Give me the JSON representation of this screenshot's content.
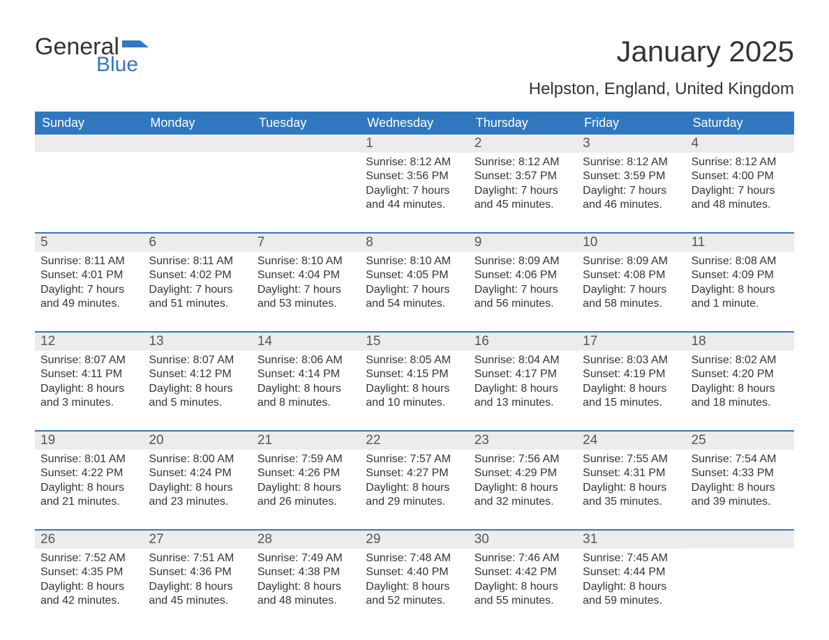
{
  "logo": {
    "word1": "General",
    "word2": "Blue",
    "flag_color": "#2f78bf"
  },
  "title": "January 2025",
  "subtitle": "Helpston, England, United Kingdom",
  "colors": {
    "header_bg": "#2f78bf",
    "header_fg": "#ffffff",
    "daynum_bg": "#ececec",
    "text": "#333333",
    "page_bg": "#ffffff"
  },
  "typography": {
    "title_fontsize": 42,
    "subtitle_fontsize": 24,
    "dayhead_fontsize": 18,
    "daynum_fontsize": 19,
    "body_fontsize": 16
  },
  "day_names": [
    "Sunday",
    "Monday",
    "Tuesday",
    "Wednesday",
    "Thursday",
    "Friday",
    "Saturday"
  ],
  "labels": {
    "sunrise": "Sunrise: ",
    "sunset": "Sunset: ",
    "daylight": "Daylight: "
  },
  "weeks": [
    [
      null,
      null,
      null,
      {
        "n": "1",
        "sunrise": "8:12 AM",
        "sunset": "3:56 PM",
        "daylight": "7 hours and 44 minutes."
      },
      {
        "n": "2",
        "sunrise": "8:12 AM",
        "sunset": "3:57 PM",
        "daylight": "7 hours and 45 minutes."
      },
      {
        "n": "3",
        "sunrise": "8:12 AM",
        "sunset": "3:59 PM",
        "daylight": "7 hours and 46 minutes."
      },
      {
        "n": "4",
        "sunrise": "8:12 AM",
        "sunset": "4:00 PM",
        "daylight": "7 hours and 48 minutes."
      }
    ],
    [
      {
        "n": "5",
        "sunrise": "8:11 AM",
        "sunset": "4:01 PM",
        "daylight": "7 hours and 49 minutes."
      },
      {
        "n": "6",
        "sunrise": "8:11 AM",
        "sunset": "4:02 PM",
        "daylight": "7 hours and 51 minutes."
      },
      {
        "n": "7",
        "sunrise": "8:10 AM",
        "sunset": "4:04 PM",
        "daylight": "7 hours and 53 minutes."
      },
      {
        "n": "8",
        "sunrise": "8:10 AM",
        "sunset": "4:05 PM",
        "daylight": "7 hours and 54 minutes."
      },
      {
        "n": "9",
        "sunrise": "8:09 AM",
        "sunset": "4:06 PM",
        "daylight": "7 hours and 56 minutes."
      },
      {
        "n": "10",
        "sunrise": "8:09 AM",
        "sunset": "4:08 PM",
        "daylight": "7 hours and 58 minutes."
      },
      {
        "n": "11",
        "sunrise": "8:08 AM",
        "sunset": "4:09 PM",
        "daylight": "8 hours and 1 minute."
      }
    ],
    [
      {
        "n": "12",
        "sunrise": "8:07 AM",
        "sunset": "4:11 PM",
        "daylight": "8 hours and 3 minutes."
      },
      {
        "n": "13",
        "sunrise": "8:07 AM",
        "sunset": "4:12 PM",
        "daylight": "8 hours and 5 minutes."
      },
      {
        "n": "14",
        "sunrise": "8:06 AM",
        "sunset": "4:14 PM",
        "daylight": "8 hours and 8 minutes."
      },
      {
        "n": "15",
        "sunrise": "8:05 AM",
        "sunset": "4:15 PM",
        "daylight": "8 hours and 10 minutes."
      },
      {
        "n": "16",
        "sunrise": "8:04 AM",
        "sunset": "4:17 PM",
        "daylight": "8 hours and 13 minutes."
      },
      {
        "n": "17",
        "sunrise": "8:03 AM",
        "sunset": "4:19 PM",
        "daylight": "8 hours and 15 minutes."
      },
      {
        "n": "18",
        "sunrise": "8:02 AM",
        "sunset": "4:20 PM",
        "daylight": "8 hours and 18 minutes."
      }
    ],
    [
      {
        "n": "19",
        "sunrise": "8:01 AM",
        "sunset": "4:22 PM",
        "daylight": "8 hours and 21 minutes."
      },
      {
        "n": "20",
        "sunrise": "8:00 AM",
        "sunset": "4:24 PM",
        "daylight": "8 hours and 23 minutes."
      },
      {
        "n": "21",
        "sunrise": "7:59 AM",
        "sunset": "4:26 PM",
        "daylight": "8 hours and 26 minutes."
      },
      {
        "n": "22",
        "sunrise": "7:57 AM",
        "sunset": "4:27 PM",
        "daylight": "8 hours and 29 minutes."
      },
      {
        "n": "23",
        "sunrise": "7:56 AM",
        "sunset": "4:29 PM",
        "daylight": "8 hours and 32 minutes."
      },
      {
        "n": "24",
        "sunrise": "7:55 AM",
        "sunset": "4:31 PM",
        "daylight": "8 hours and 35 minutes."
      },
      {
        "n": "25",
        "sunrise": "7:54 AM",
        "sunset": "4:33 PM",
        "daylight": "8 hours and 39 minutes."
      }
    ],
    [
      {
        "n": "26",
        "sunrise": "7:52 AM",
        "sunset": "4:35 PM",
        "daylight": "8 hours and 42 minutes."
      },
      {
        "n": "27",
        "sunrise": "7:51 AM",
        "sunset": "4:36 PM",
        "daylight": "8 hours and 45 minutes."
      },
      {
        "n": "28",
        "sunrise": "7:49 AM",
        "sunset": "4:38 PM",
        "daylight": "8 hours and 48 minutes."
      },
      {
        "n": "29",
        "sunrise": "7:48 AM",
        "sunset": "4:40 PM",
        "daylight": "8 hours and 52 minutes."
      },
      {
        "n": "30",
        "sunrise": "7:46 AM",
        "sunset": "4:42 PM",
        "daylight": "8 hours and 55 minutes."
      },
      {
        "n": "31",
        "sunrise": "7:45 AM",
        "sunset": "4:44 PM",
        "daylight": "8 hours and 59 minutes."
      },
      null
    ]
  ]
}
